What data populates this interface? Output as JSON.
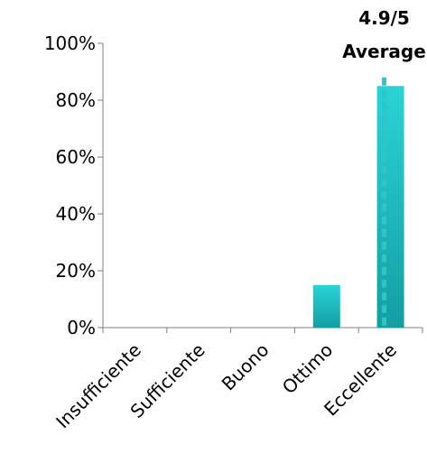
{
  "chart_data": {
    "type": "bar",
    "categories": [
      "Insufficiente",
      "Sufficiente",
      "Buono",
      "Ottimo",
      "Eccellente"
    ],
    "values": [
      0,
      0,
      0,
      15,
      85
    ],
    "ylim": [
      0,
      100
    ],
    "yticks": [
      0,
      20,
      40,
      60,
      80,
      100
    ],
    "ytick_labels": [
      "0%",
      "20%",
      "40%",
      "60%",
      "80%",
      "100%"
    ],
    "grid": false,
    "legend": "none",
    "bar_color_top": "#2bd3d6",
    "bar_color_bottom": "#139ea2",
    "average": {
      "value": 4.9,
      "scale_max": 5,
      "label_line1": "4.9/5",
      "label_line2": "Average",
      "line_color": "#2ec4c8",
      "y_top": 88
    }
  }
}
